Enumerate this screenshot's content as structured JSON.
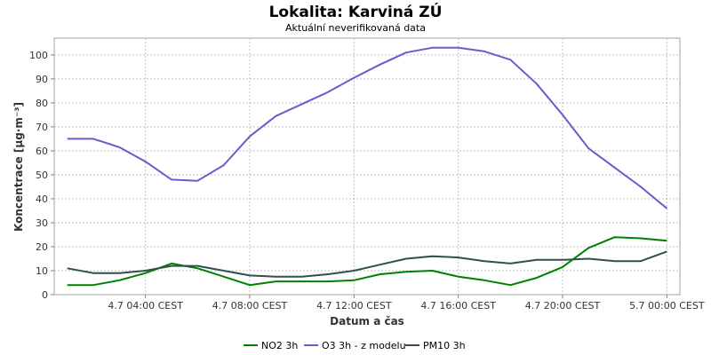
{
  "chart_data": {
    "type": "line",
    "title": "Lokalita: Karviná ZÚ",
    "subtitle": "Aktuální neverifikovaná data",
    "xlabel": "Datum a čas",
    "ylabel": "Koncentrace [µg·m⁻³]",
    "ylim": [
      0,
      107
    ],
    "yticks": [
      0,
      10,
      20,
      30,
      40,
      50,
      60,
      70,
      80,
      90,
      100
    ],
    "xlim": [
      0.5,
      24.5
    ],
    "x_ticks": [
      {
        "x": 4,
        "label": "4.7 04:00 CEST"
      },
      {
        "x": 8,
        "label": "4.7 08:00 CEST"
      },
      {
        "x": 12,
        "label": "4.7 12:00 CEST"
      },
      {
        "x": 16,
        "label": "4.7 16:00 CEST"
      },
      {
        "x": 20,
        "label": "4.7 20:00 CEST"
      },
      {
        "x": 24,
        "label": "5.7 00:00 CEST"
      }
    ],
    "x": [
      1,
      2,
      3,
      4,
      5,
      6,
      7,
      8,
      9,
      10,
      11,
      12,
      13,
      14,
      15,
      16,
      17,
      18,
      19,
      20,
      21,
      22,
      23,
      24
    ],
    "grid": true,
    "legend_position": "bottom",
    "series": [
      {
        "name": "NO2 3h",
        "color": "#008000",
        "values": [
          4,
          4,
          6,
          9,
          13,
          11,
          7.5,
          4,
          5.5,
          5.5,
          5.5,
          6,
          8.5,
          9.5,
          10,
          7.5,
          6,
          4,
          7,
          11.5,
          19.5,
          24,
          23.5,
          22.5
        ]
      },
      {
        "name": "O3 3h - z modelu",
        "color": "#6a5acd",
        "values": [
          65,
          65,
          61.5,
          55.5,
          48,
          47.5,
          54,
          66,
          74.5,
          79.5,
          84.5,
          90.5,
          96,
          101,
          103,
          103,
          101.5,
          98,
          88,
          75,
          61,
          53,
          45,
          36
        ]
      },
      {
        "name": "PM10 3h",
        "color": "#2f4f4f",
        "values": [
          11,
          9,
          9,
          10,
          12,
          12,
          10,
          8,
          7.5,
          7.5,
          8.5,
          10,
          12.5,
          15,
          16,
          15.5,
          14,
          13,
          14.5,
          14.5,
          15,
          14,
          14,
          18
        ]
      }
    ]
  }
}
